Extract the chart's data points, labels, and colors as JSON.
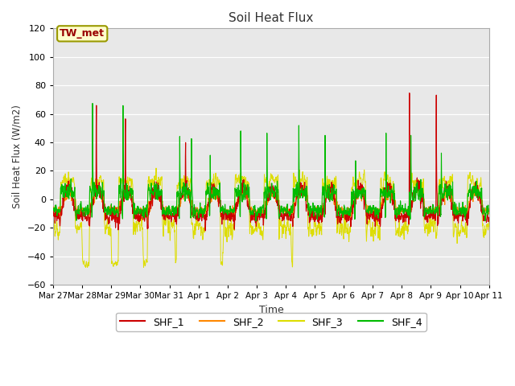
{
  "title": "Soil Heat Flux",
  "ylabel": "Soil Heat Flux (W/m2)",
  "xlabel": "Time",
  "ylim": [
    -60,
    120
  ],
  "yticks": [
    -60,
    -40,
    -20,
    0,
    20,
    40,
    60,
    80,
    100,
    120
  ],
  "xtick_labels": [
    "Mar 27",
    "Mar 28",
    "Mar 29",
    "Mar 30",
    "Mar 31",
    "Apr 1",
    "Apr 2",
    "Apr 3",
    "Apr 4",
    "Apr 5",
    "Apr 6",
    "Apr 7",
    "Apr 8",
    "Apr 9",
    "Apr 10",
    "Apr 11"
  ],
  "colors": {
    "SHF_1": "#cc0000",
    "SHF_2": "#ff8800",
    "SHF_3": "#dddd00",
    "SHF_4": "#00bb00"
  },
  "annotation_text": "TW_met",
  "annotation_color": "#990000",
  "annotation_bg": "#ffffcc",
  "annotation_edge": "#999900",
  "plot_bg": "#e8e8e8",
  "fig_bg": "#ffffff",
  "grid_color": "#ffffff",
  "n_days": 15,
  "ppd": 144
}
